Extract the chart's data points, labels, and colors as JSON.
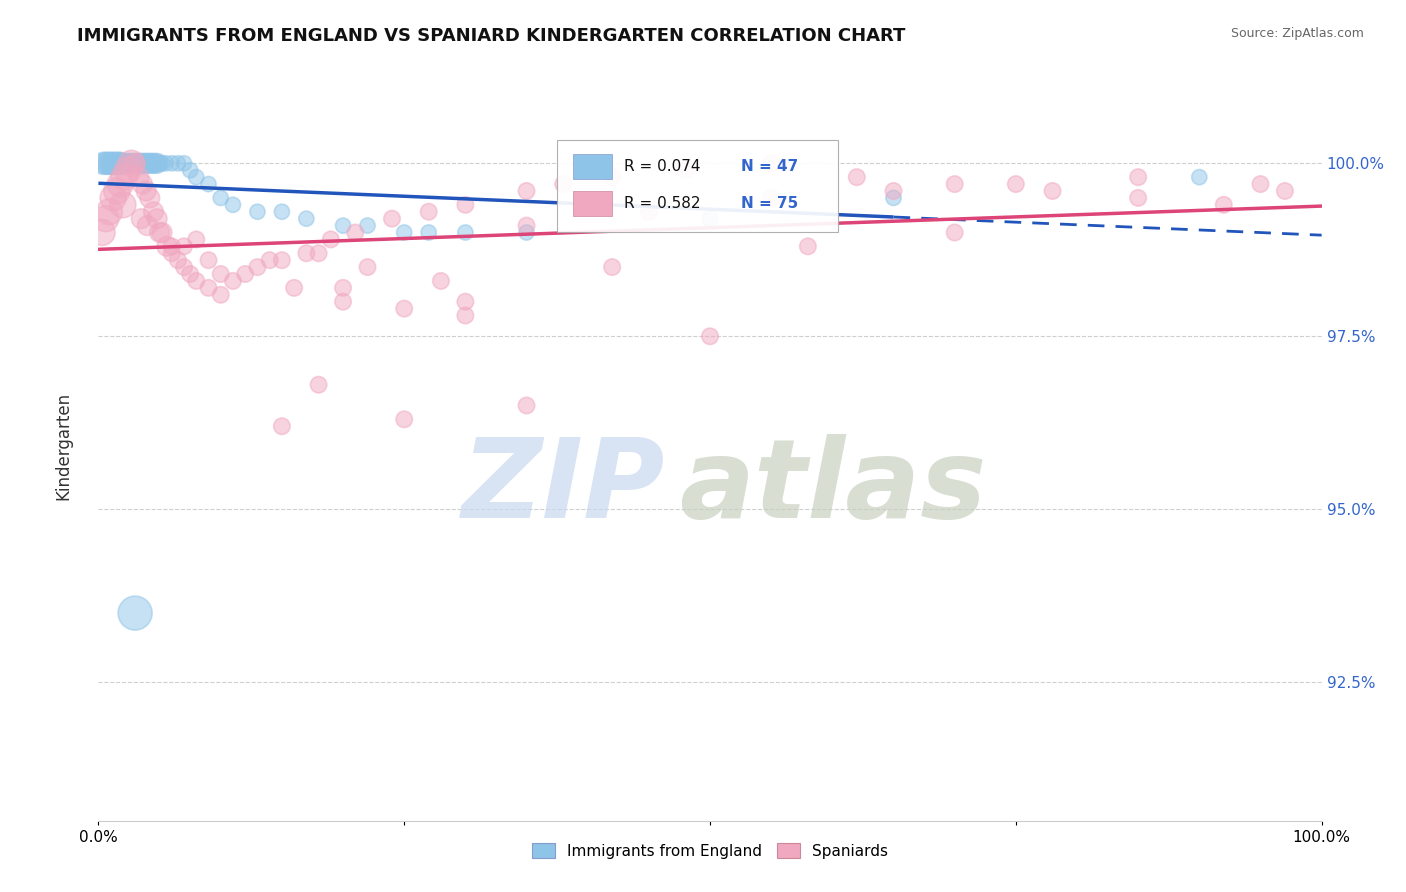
{
  "title": "IMMIGRANTS FROM ENGLAND VS SPANIARD KINDERGARTEN CORRELATION CHART",
  "source_text": "Source: ZipAtlas.com",
  "ylabel": "Kindergarten",
  "xlim": [
    0.0,
    100.0
  ],
  "ylim": [
    90.5,
    101.2
  ],
  "yticks": [
    92.5,
    95.0,
    97.5,
    100.0
  ],
  "ytick_labels": [
    "92.5%",
    "95.0%",
    "97.5%",
    "100.0%"
  ],
  "xtick_left_label": "0.0%",
  "xtick_right_label": "100.0%",
  "legend_r1": "R = 0.074",
  "legend_n1": "N = 47",
  "legend_r2": "R = 0.582",
  "legend_n2": "N = 75",
  "color_england": "#8EC4E8",
  "color_spaniard": "#F0A8C0",
  "line_color_england": "#2255BB",
  "line_color_spaniard": "#DD4477",
  "watermark_zip_color": "#C8D8F0",
  "watermark_atlas_color": "#C8D0C0",
  "grid_color": "#bbbbbb",
  "background_color": "#ffffff",
  "england_x": [
    0.4,
    0.6,
    0.8,
    1.0,
    1.2,
    1.4,
    1.6,
    1.8,
    2.0,
    2.2,
    2.4,
    2.6,
    2.8,
    3.0,
    3.2,
    3.4,
    3.6,
    3.8,
    4.0,
    4.2,
    4.4,
    4.6,
    4.8,
    5.0,
    5.2,
    5.5,
    6.0,
    6.5,
    7.0,
    7.5,
    8.0,
    9.0,
    10.0,
    11.0,
    13.0,
    15.0,
    17.0,
    20.0,
    22.0,
    25.0,
    27.0,
    30.0,
    35.0,
    50.0,
    65.0,
    90.0,
    3.0
  ],
  "england_y": [
    100.0,
    100.0,
    100.0,
    100.0,
    100.0,
    100.0,
    100.0,
    100.0,
    100.0,
    100.0,
    100.0,
    100.0,
    100.0,
    100.0,
    100.0,
    100.0,
    100.0,
    100.0,
    100.0,
    100.0,
    100.0,
    100.0,
    100.0,
    100.0,
    100.0,
    100.0,
    100.0,
    100.0,
    100.0,
    99.9,
    99.8,
    99.7,
    99.5,
    99.4,
    99.3,
    99.3,
    99.2,
    99.1,
    99.1,
    99.0,
    99.0,
    99.0,
    99.0,
    99.2,
    99.5,
    99.8,
    93.5
  ],
  "spaniard_x": [
    0.3,
    0.6,
    0.9,
    1.2,
    1.5,
    1.8,
    2.1,
    2.4,
    2.7,
    3.0,
    3.3,
    3.6,
    3.9,
    4.2,
    4.5,
    4.8,
    5.2,
    5.6,
    6.0,
    6.5,
    7.0,
    7.5,
    8.0,
    9.0,
    10.0,
    11.0,
    13.0,
    15.0,
    17.0,
    19.0,
    21.0,
    24.0,
    27.0,
    30.0,
    35.0,
    38.0,
    42.0,
    48.0,
    55.0,
    62.0,
    70.0,
    78.0,
    85.0,
    92.0,
    97.0,
    2.0,
    3.5,
    5.0,
    7.0,
    9.0,
    12.0,
    16.0,
    20.0,
    25.0,
    30.0,
    18.0,
    8.0,
    4.0,
    22.0,
    28.0,
    14.0,
    6.0,
    35.0,
    45.0,
    55.0,
    65.0,
    75.0,
    85.0,
    95.0,
    10.0,
    20.0,
    30.0,
    42.0,
    58.0,
    70.0
  ],
  "spaniard_y": [
    99.0,
    99.2,
    99.3,
    99.5,
    99.6,
    99.7,
    99.8,
    99.9,
    100.0,
    100.0,
    99.8,
    99.7,
    99.6,
    99.5,
    99.3,
    99.2,
    99.0,
    98.8,
    98.7,
    98.6,
    98.5,
    98.4,
    98.3,
    98.2,
    98.1,
    98.3,
    98.5,
    98.6,
    98.7,
    98.9,
    99.0,
    99.2,
    99.3,
    99.4,
    99.6,
    99.7,
    99.8,
    99.9,
    100.0,
    99.8,
    99.7,
    99.6,
    99.5,
    99.4,
    99.6,
    99.4,
    99.2,
    99.0,
    98.8,
    98.6,
    98.4,
    98.2,
    98.0,
    97.9,
    97.8,
    98.7,
    98.9,
    99.1,
    98.5,
    98.3,
    98.6,
    98.8,
    99.1,
    99.3,
    99.5,
    99.6,
    99.7,
    99.8,
    99.7,
    98.4,
    98.2,
    98.0,
    98.5,
    98.8,
    99.0
  ],
  "england_large_outlier_x": 3.0,
  "england_large_outlier_y": 93.5,
  "spaniard_outlier1_x": 18.0,
  "spaniard_outlier1_y": 96.8,
  "spaniard_outlier2_x": 35.0,
  "spaniard_outlier2_y": 96.5,
  "spaniard_outlier3_x": 25.0,
  "spaniard_outlier3_y": 96.3,
  "spaniard_outlier4_x": 15.0,
  "spaniard_outlier4_y": 96.2,
  "spaniard_outlier5_x": 50.0,
  "spaniard_outlier5_y": 97.5
}
